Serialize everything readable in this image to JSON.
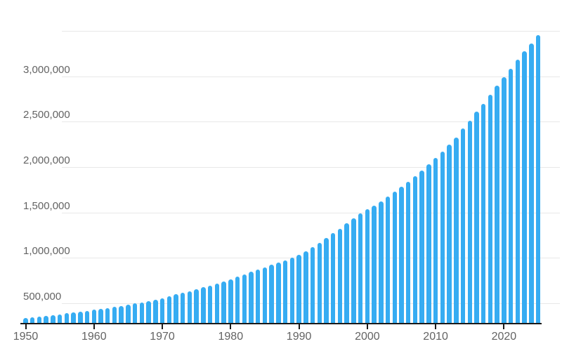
{
  "chart_data": {
    "type": "bar",
    "title": "",
    "xlabel": "",
    "ylabel": "",
    "legend": "none",
    "grid": true,
    "background_color": "#ffffff",
    "bar_color": "#36acf2",
    "grid_color": "#e8e8e8",
    "axis_line_color": "#1a1a1a",
    "tick_label_color": "#636363",
    "ylim": [
      284000,
      3500000
    ],
    "xlim": [
      1949.5,
      2025.5
    ],
    "x": [
      1950,
      1951,
      1952,
      1953,
      1954,
      1955,
      1956,
      1957,
      1958,
      1959,
      1960,
      1961,
      1962,
      1963,
      1964,
      1965,
      1966,
      1967,
      1968,
      1969,
      1970,
      1971,
      1972,
      1973,
      1974,
      1975,
      1976,
      1977,
      1978,
      1979,
      1980,
      1981,
      1982,
      1983,
      1984,
      1985,
      1986,
      1987,
      1988,
      1989,
      1990,
      1991,
      1992,
      1993,
      1994,
      1995,
      1996,
      1997,
      1998,
      1999,
      2000,
      2001,
      2002,
      2003,
      2004,
      2005,
      2006,
      2007,
      2008,
      2009,
      2010,
      2011,
      2012,
      2013,
      2014,
      2015,
      2016,
      2017,
      2018,
      2019,
      2020,
      2021,
      2022,
      2023,
      2024,
      2025
    ],
    "values": [
      338000,
      346000,
      355000,
      363000,
      372000,
      380000,
      390000,
      398000,
      407000,
      415000,
      431000,
      436000,
      448000,
      462000,
      472000,
      485000,
      498000,
      510000,
      526000,
      541000,
      558000,
      575000,
      598000,
      616000,
      634000,
      655000,
      676000,
      696000,
      717000,
      742000,
      767000,
      794000,
      820000,
      846000,
      869000,
      897000,
      923000,
      949000,
      974000,
      1003000,
      1031000,
      1074000,
      1119000,
      1167000,
      1217000,
      1270000,
      1324000,
      1379000,
      1436000,
      1490000,
      1534000,
      1577000,
      1624000,
      1675000,
      1727000,
      1784000,
      1840000,
      1902000,
      1964000,
      2031000,
      2098000,
      2173000,
      2248000,
      2329000,
      2425000,
      2510000,
      2611000,
      2700000,
      2797000,
      2897000,
      2990000,
      3083000,
      3183000,
      3274000,
      3361000,
      3454000
    ],
    "y_ticks": [
      {
        "value": 500000,
        "label": "500,000"
      },
      {
        "value": 1000000,
        "label": "1,000,000"
      },
      {
        "value": 1500000,
        "label": "1,500,000"
      },
      {
        "value": 2000000,
        "label": "2,000,000"
      },
      {
        "value": 2500000,
        "label": "2,500,000"
      },
      {
        "value": 3000000,
        "label": "3,000,000"
      },
      {
        "value": 3500000,
        "label": ""
      }
    ],
    "x_ticks": [
      {
        "value": 1950,
        "label": "1950"
      },
      {
        "value": 1960,
        "label": "1960"
      },
      {
        "value": 1970,
        "label": "1970"
      },
      {
        "value": 1980,
        "label": "1980"
      },
      {
        "value": 1990,
        "label": "1990"
      },
      {
        "value": 2000,
        "label": "2000"
      },
      {
        "value": 2010,
        "label": "2010"
      },
      {
        "value": 2020,
        "label": "2020"
      }
    ]
  }
}
